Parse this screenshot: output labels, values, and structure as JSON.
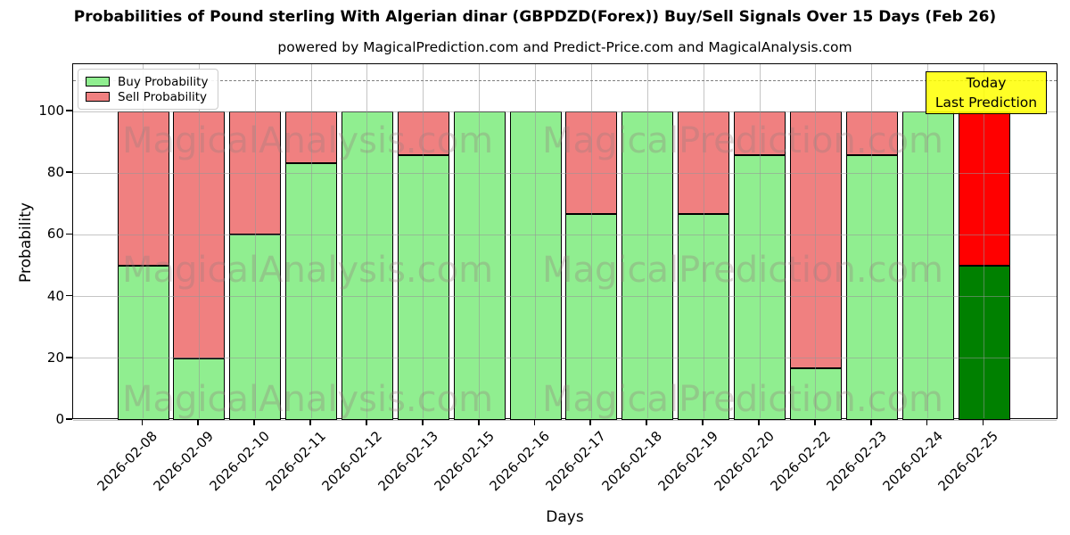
{
  "title": "Probabilities of Pound sterling With Algerian dinar (GBPDZD(Forex)) Buy/Sell Signals Over 15 Days (Feb 26)",
  "subtitle": "powered by MagicalPrediction.com and Predict-Price.com and MagicalAnalysis.com",
  "legend": {
    "items": [
      {
        "label": "Buy Probability",
        "color": "#90ee90"
      },
      {
        "label": "Sell Probability",
        "color": "#f08080"
      }
    ]
  },
  "annotation_box": {
    "line1": "Today",
    "line2": "Last Prediction",
    "bg_color": "#ffff00"
  },
  "watermarks": {
    "left_text": "MagicalAnalysis.com",
    "right_text": "MagicalPrediction.com"
  },
  "chart_data": {
    "type": "bar",
    "stacked": true,
    "title": "Probabilities of Pound sterling With Algerian dinar (GBPDZD(Forex)) Buy/Sell Signals Over 15 Days (Feb 26)",
    "xlabel": "Days",
    "ylabel": "Probability",
    "categories": [
      "2026-02-08",
      "2026-02-09",
      "2026-02-10",
      "2026-02-11",
      "2026-02-12",
      "2026-02-13",
      "2026-02-15",
      "2026-02-16",
      "2026-02-17",
      "2026-02-18",
      "2026-02-19",
      "2026-02-20",
      "2026-02-22",
      "2026-02-23",
      "2026-02-24",
      "2026-02-25"
    ],
    "series": [
      {
        "name": "Buy Probability",
        "color": "#90ee90",
        "values": [
          50,
          20,
          60,
          83.33,
          100,
          85.71,
          100,
          100,
          66.67,
          100,
          66.67,
          85.71,
          16.67,
          85.71,
          100,
          50
        ]
      },
      {
        "name": "Sell Probability",
        "color": "#f08080",
        "values": [
          50,
          80,
          40,
          16.67,
          0,
          14.29,
          0,
          0,
          33.33,
          0,
          33.33,
          14.29,
          83.33,
          14.29,
          0,
          50
        ]
      }
    ],
    "last_bar_highlight": {
      "buy_color": "#008000",
      "sell_color": "#ff0000",
      "label": "Last Prediction"
    },
    "yticks": [
      0,
      20,
      40,
      60,
      80,
      100
    ],
    "ylim": [
      0,
      115.3
    ],
    "dashed_line_y": 110,
    "grid": true,
    "legend_position": "upper left",
    "bar_edge_color": "#000000",
    "grid_color": "#b0b0b0",
    "dashed_line_color": "#808080"
  }
}
